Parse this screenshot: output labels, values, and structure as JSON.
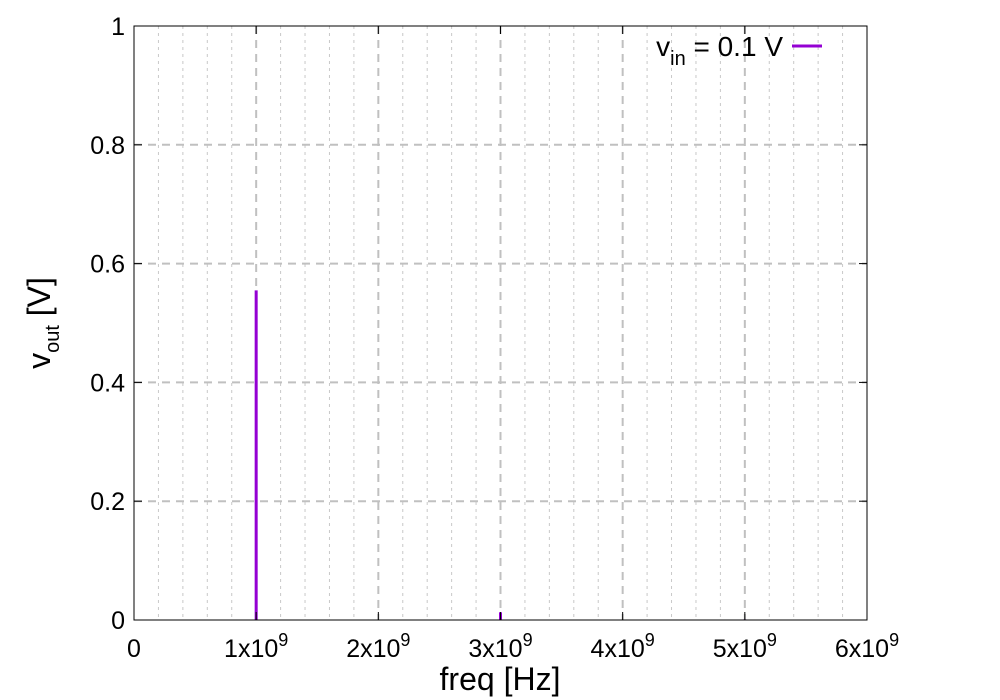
{
  "chart_data": {
    "type": "bar",
    "xlabel": {
      "main": "freq [Hz]"
    },
    "ylabel": {
      "base": "v",
      "sub": "out",
      "tail": " [V]"
    },
    "xlim": [
      0,
      6000000000
    ],
    "ylim": [
      0,
      1
    ],
    "grid": true,
    "legend_placement": "top-right",
    "x_ticks": [
      {
        "value": 0,
        "mantissa": "0",
        "exponent": ""
      },
      {
        "value": 1000000000,
        "mantissa": "1x10",
        "exponent": "9"
      },
      {
        "value": 2000000000,
        "mantissa": "2x10",
        "exponent": "9"
      },
      {
        "value": 3000000000,
        "mantissa": "3x10",
        "exponent": "9"
      },
      {
        "value": 4000000000,
        "mantissa": "4x10",
        "exponent": "9"
      },
      {
        "value": 5000000000,
        "mantissa": "5x10",
        "exponent": "9"
      },
      {
        "value": 6000000000,
        "mantissa": "6x10",
        "exponent": "9"
      }
    ],
    "x_minor_step": 200000000,
    "y_ticks": [
      {
        "value": 0,
        "label": "0"
      },
      {
        "value": 0.2,
        "label": "0.2"
      },
      {
        "value": 0.4,
        "label": "0.4"
      },
      {
        "value": 0.6,
        "label": "0.6"
      },
      {
        "value": 0.8,
        "label": "0.8"
      },
      {
        "value": 1,
        "label": "1"
      }
    ],
    "series": [
      {
        "name": {
          "base": "v",
          "sub": "in",
          "tail": " = 0.1 V"
        },
        "color": "#9400d3",
        "points": [
          {
            "x": 1000000000,
            "y": 0.555
          },
          {
            "x": 3000000000,
            "y": 0.013
          },
          {
            "x": 5000000000,
            "y": 0.001
          }
        ]
      }
    ]
  }
}
